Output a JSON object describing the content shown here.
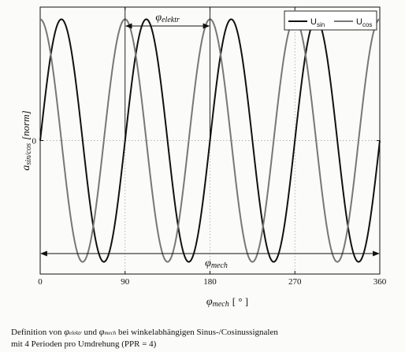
{
  "chart_data": {
    "type": "line",
    "xlabel": {
      "symbol": "φ",
      "subscript": "mech",
      "unit": "[ ° ]"
    },
    "ylabel": {
      "symbol": "a",
      "subscript": "sin/cos",
      "unit": "[norm]"
    },
    "xlim": [
      0,
      360
    ],
    "ylim": [
      -1.1,
      1.1
    ],
    "x_ticks": [
      0,
      90,
      180,
      270,
      360
    ],
    "y_ticks": [
      0
    ],
    "x_tick_labels": [
      "0",
      "90",
      "180",
      "270",
      "360"
    ],
    "y_tick_labels": [
      "0"
    ],
    "grid": true,
    "legend_position": "top-right",
    "periods_per_revolution": 4,
    "series": [
      {
        "name": "U",
        "subscript": "sin",
        "function": "sin(4x)",
        "color": "#111111"
      },
      {
        "name": "U",
        "subscript": "cos",
        "function": "cos(4x)",
        "color": "#777777"
      }
    ],
    "annotations": [
      {
        "label": "φ",
        "subscript": "elektr",
        "x_start": 90,
        "x_end": 180
      },
      {
        "label": "φ",
        "subscript": "mech",
        "x_start": 0,
        "x_end": 360
      }
    ]
  },
  "caption": {
    "line1_prefix": "Definition von",
    "phi": "φ",
    "sub_elektr": "elektr",
    "und": "und",
    "sub_mech": "mech",
    "line1_suffix": "bei winkelabhängigen Sinus-/Cosinussignalen",
    "line2": "mit 4 Perioden pro Umdrehung (PPR = 4)"
  }
}
